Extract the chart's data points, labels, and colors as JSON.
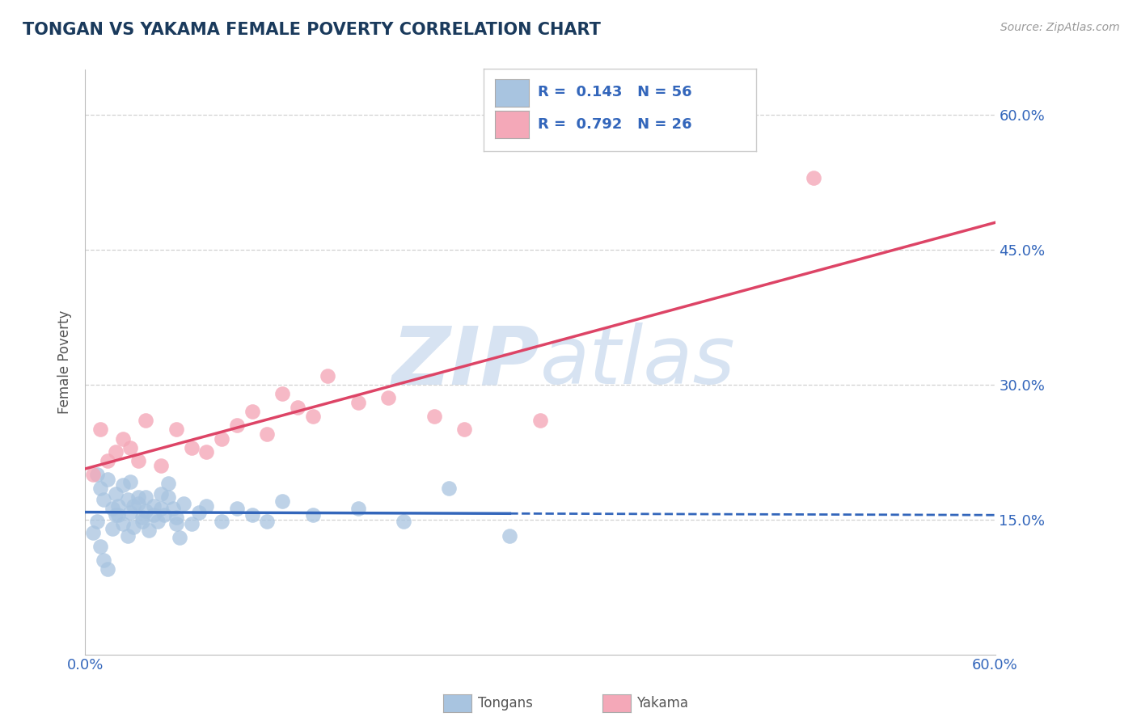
{
  "title": "TONGAN VS YAKAMA FEMALE POVERTY CORRELATION CHART",
  "source": "Source: ZipAtlas.com",
  "ylabel": "Female Poverty",
  "xlim": [
    0.0,
    0.6
  ],
  "ylim": [
    0.0,
    0.65
  ],
  "yticks": [
    0.15,
    0.3,
    0.45,
    0.6
  ],
  "ytick_labels": [
    "15.0%",
    "30.0%",
    "45.0%",
    "60.0%"
  ],
  "xtick_labels": [
    "0.0%",
    "60.0%"
  ],
  "xticks": [
    0.0,
    0.6
  ],
  "grid_color": "#cccccc",
  "bg_color": "#ffffff",
  "tongan_color": "#a8c4e0",
  "yakama_color": "#f4a8b8",
  "tongan_line_color": "#3366bb",
  "yakama_line_color": "#dd4466",
  "legend_text_color": "#3366bb",
  "title_color": "#1a3a5c",
  "label_color": "#3366bb",
  "watermark_color": "#d0dff0",
  "tongan_x": [
    0.005,
    0.008,
    0.01,
    0.012,
    0.015,
    0.018,
    0.02,
    0.022,
    0.025,
    0.028,
    0.03,
    0.032,
    0.035,
    0.038,
    0.04,
    0.042,
    0.045,
    0.048,
    0.05,
    0.052,
    0.055,
    0.058,
    0.06,
    0.062,
    0.008,
    0.01,
    0.012,
    0.015,
    0.018,
    0.02,
    0.022,
    0.025,
    0.028,
    0.03,
    0.032,
    0.035,
    0.038,
    0.04,
    0.045,
    0.05,
    0.055,
    0.06,
    0.065,
    0.07,
    0.075,
    0.08,
    0.09,
    0.1,
    0.11,
    0.12,
    0.13,
    0.15,
    0.18,
    0.21,
    0.24,
    0.28
  ],
  "tongan_y": [
    0.135,
    0.148,
    0.12,
    0.105,
    0.095,
    0.14,
    0.155,
    0.165,
    0.145,
    0.132,
    0.158,
    0.142,
    0.168,
    0.152,
    0.175,
    0.138,
    0.165,
    0.148,
    0.178,
    0.155,
    0.19,
    0.162,
    0.145,
    0.13,
    0.2,
    0.185,
    0.172,
    0.195,
    0.162,
    0.178,
    0.155,
    0.188,
    0.172,
    0.192,
    0.165,
    0.175,
    0.148,
    0.16,
    0.155,
    0.162,
    0.175,
    0.152,
    0.168,
    0.145,
    0.158,
    0.165,
    0.148,
    0.162,
    0.155,
    0.148,
    0.17,
    0.155,
    0.162,
    0.148,
    0.185,
    0.132
  ],
  "yakama_x": [
    0.005,
    0.01,
    0.015,
    0.02,
    0.025,
    0.03,
    0.035,
    0.04,
    0.05,
    0.06,
    0.07,
    0.08,
    0.09,
    0.1,
    0.11,
    0.12,
    0.13,
    0.14,
    0.15,
    0.16,
    0.18,
    0.2,
    0.23,
    0.25,
    0.3,
    0.48
  ],
  "yakama_y": [
    0.2,
    0.25,
    0.215,
    0.225,
    0.24,
    0.23,
    0.215,
    0.26,
    0.21,
    0.25,
    0.23,
    0.225,
    0.24,
    0.255,
    0.27,
    0.245,
    0.29,
    0.275,
    0.265,
    0.31,
    0.28,
    0.285,
    0.265,
    0.25,
    0.26,
    0.53
  ],
  "tongan_r": 0.143,
  "tongan_n": 56,
  "yakama_r": 0.792,
  "yakama_n": 26
}
